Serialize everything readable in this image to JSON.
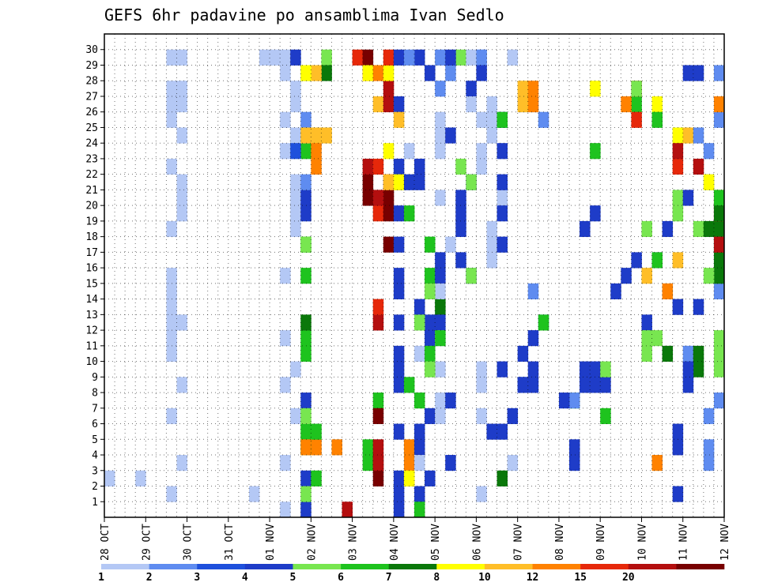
{
  "chart_data": {
    "type": "heatmap",
    "title": "GEFS 6hr padavine po ansamblima Ivan Sedlo",
    "xlabel": "",
    "ylabel": "",
    "x_ticks": [
      "28 OCT",
      "29 OCT",
      "30 OCT",
      "31 OCT",
      "01 NOV",
      "02 NOV",
      "03 NOV",
      "04 NOV",
      "05 NOV",
      "06 NOV",
      "07 NOV",
      "08 NOV",
      "09 NOV",
      "10 NOV",
      "11 NOV",
      "12 NOV"
    ],
    "y_ticks": [
      "1",
      "2",
      "3",
      "4",
      "5",
      "6",
      "7",
      "8",
      "9",
      "10",
      "11",
      "12",
      "13",
      "14",
      "15",
      "16",
      "17",
      "18",
      "19",
      "20",
      "21",
      "22",
      "23",
      "24",
      "25",
      "26",
      "27",
      "28",
      "29",
      "30"
    ],
    "time_steps": 60,
    "step_hours": 6,
    "members": 31,
    "grid": true,
    "colorbar": {
      "levels": [
        "1",
        "2",
        "3",
        "4",
        "5",
        "6",
        "7",
        "8",
        "10",
        "12",
        "15",
        "20"
      ],
      "colors": [
        "#b4c8f5",
        "#5f8cf0",
        "#1e50dc",
        "#1e3cc8",
        "#78e650",
        "#1ec31e",
        "#0a780a",
        "#ffff00",
        "#ffbe28",
        "#ff8200",
        "#e6280a",
        "#b40f0f",
        "#780000"
      ]
    },
    "cells": [
      [
        0,
        2,
        0
      ],
      [
        0,
        2,
        3
      ],
      [
        0,
        1,
        6
      ],
      [
        0,
        6,
        6
      ],
      [
        0,
        10,
        6
      ],
      [
        0,
        11,
        6
      ],
      [
        0,
        12,
        6
      ],
      [
        0,
        13,
        6
      ],
      [
        0,
        14,
        6
      ],
      [
        0,
        15,
        6
      ],
      [
        0,
        18,
        6
      ],
      [
        0,
        22,
        6
      ],
      [
        0,
        25,
        6
      ],
      [
        0,
        26,
        6
      ],
      [
        0,
        27,
        6
      ],
      [
        0,
        29,
        6
      ],
      [
        0,
        3,
        7
      ],
      [
        0,
        8,
        7
      ],
      [
        0,
        12,
        7
      ],
      [
        0,
        19,
        7
      ],
      [
        0,
        20,
        7
      ],
      [
        0,
        21,
        7
      ],
      [
        0,
        24,
        7
      ],
      [
        0,
        26,
        7
      ],
      [
        0,
        27,
        7
      ],
      [
        0,
        29,
        7
      ],
      [
        0,
        29,
        15
      ],
      [
        0,
        29,
        16
      ],
      [
        0,
        1,
        14
      ],
      [
        0,
        0,
        17
      ],
      [
        0,
        3,
        17
      ],
      [
        0,
        8,
        17
      ],
      [
        0,
        11,
        17
      ],
      [
        0,
        15,
        17
      ],
      [
        0,
        23,
        17
      ],
      [
        0,
        25,
        17
      ],
      [
        0,
        28,
        17
      ],
      [
        0,
        29,
        17
      ],
      [
        0,
        6,
        18
      ],
      [
        0,
        9,
        18
      ],
      [
        0,
        18,
        18
      ],
      [
        0,
        19,
        18
      ],
      [
        0,
        20,
        18
      ],
      [
        0,
        21,
        18
      ],
      [
        0,
        24,
        18
      ],
      [
        0,
        26,
        18
      ],
      [
        0,
        27,
        18
      ],
      [
        3,
        29,
        18
      ],
      [
        3,
        20,
        19
      ],
      [
        3,
        0,
        19
      ],
      [
        5,
        23,
        19
      ],
      [
        5,
        17,
        19
      ],
      [
        5,
        5,
        19
      ],
      [
        5,
        10,
        19
      ],
      [
        3,
        19,
        19
      ],
      [
        1,
        24,
        19
      ],
      [
        1,
        25,
        19
      ],
      [
        1,
        21,
        19
      ],
      [
        1,
        28,
        19
      ],
      [
        2,
        23,
        18
      ],
      [
        4,
        29,
        21
      ],
      [
        6,
        28,
        21
      ],
      [
        8,
        24,
        20
      ],
      [
        8,
        24,
        19
      ],
      [
        9,
        23,
        20
      ],
      [
        9,
        4,
        20
      ],
      [
        3,
        2,
        19
      ],
      [
        3,
        7,
        19
      ],
      [
        4,
        1,
        19
      ],
      [
        4,
        6,
        19
      ],
      [
        4,
        17,
        19
      ],
      [
        5,
        2,
        20
      ],
      [
        5,
        5,
        20
      ],
      [
        5,
        4,
        19
      ],
      [
        9,
        4,
        19
      ],
      [
        5,
        11,
        19
      ],
      [
        6,
        12,
        19
      ],
      [
        5,
        15,
        19
      ],
      [
        8,
        24,
        21
      ],
      [
        9,
        22,
        20
      ],
      [
        8,
        28,
        20
      ],
      [
        7,
        28,
        19
      ],
      [
        9,
        4,
        22
      ],
      [
        11,
        0,
        23
      ],
      [
        10,
        29,
        24
      ],
      [
        12,
        29,
        25
      ],
      [
        12,
        20,
        25
      ],
      [
        12,
        21,
        25
      ],
      [
        11,
        22,
        25
      ],
      [
        10,
        28,
        25
      ],
      [
        7,
        28,
        25
      ],
      [
        9,
        28,
        26
      ],
      [
        8,
        26,
        26
      ],
      [
        10,
        19,
        26
      ],
      [
        10,
        22,
        26
      ],
      [
        12,
        19,
        27
      ],
      [
        11,
        26,
        27
      ],
      [
        12,
        17,
        27
      ],
      [
        12,
        20,
        27
      ],
      [
        11,
        27,
        27
      ],
      [
        7,
        28,
        27
      ],
      [
        10,
        29,
        27
      ],
      [
        3,
        29,
        28
      ],
      [
        3,
        22,
        28
      ],
      [
        3,
        26,
        28
      ],
      [
        3,
        21,
        28
      ],
      [
        3,
        19,
        28
      ],
      [
        3,
        17,
        28
      ],
      [
        3,
        15,
        28
      ],
      [
        3,
        14,
        28
      ],
      [
        3,
        8,
        28
      ],
      [
        3,
        12,
        28
      ],
      [
        3,
        5,
        28
      ],
      [
        3,
        2,
        28
      ],
      [
        3,
        1,
        28
      ],
      [
        3,
        0,
        28
      ],
      [
        3,
        10,
        28
      ],
      [
        3,
        9,
        28
      ],
      [
        5,
        3,
        25
      ],
      [
        5,
        4,
        25
      ],
      [
        5,
        7,
        26
      ],
      [
        7,
        23,
        27
      ],
      [
        8,
        25,
        28
      ],
      [
        9,
        2,
        29
      ],
      [
        9,
        3,
        29
      ],
      [
        9,
        4,
        29
      ],
      [
        3,
        29,
        30
      ],
      [
        3,
        28,
        31
      ],
      [
        3,
        22,
        30
      ],
      [
        3,
        21,
        30
      ],
      [
        3,
        13,
        30
      ],
      [
        3,
        12,
        31
      ],
      [
        3,
        11,
        31
      ],
      [
        3,
        6,
        31
      ],
      [
        3,
        5,
        30
      ],
      [
        3,
        4,
        30
      ],
      [
        3,
        2,
        31
      ],
      [
        3,
        1,
        30
      ],
      [
        1,
        27,
        32
      ],
      [
        1,
        29,
        32
      ],
      [
        4,
        12,
        30
      ],
      [
        5,
        15,
        31
      ],
      [
        5,
        17,
        31
      ],
      [
        6,
        13,
        32
      ],
      [
        3,
        16,
        32
      ],
      [
        3,
        15,
        32
      ],
      [
        3,
        12,
        32
      ],
      [
        0,
        3,
        30
      ],
      [
        0,
        10,
        30
      ],
      [
        0,
        23,
        29
      ],
      [
        0,
        20,
        32
      ],
      [
        0,
        24,
        32
      ],
      [
        0,
        7,
        32
      ],
      [
        0,
        6,
        32
      ],
      [
        0,
        9,
        32
      ],
      [
        0,
        11,
        32
      ],
      [
        0,
        14,
        32
      ],
      [
        0,
        23,
        32
      ],
      [
        0,
        25,
        32
      ],
      [
        0,
        17,
        33
      ],
      [
        3,
        3,
        33
      ],
      [
        3,
        18,
        34
      ],
      [
        3,
        19,
        34
      ],
      [
        3,
        16,
        34
      ],
      [
        3,
        15,
        35
      ],
      [
        3,
        24,
        33
      ],
      [
        4,
        15,
        35
      ],
      [
        4,
        22,
        34
      ],
      [
        4,
        29,
        34
      ],
      [
        3,
        21,
        35
      ],
      [
        3,
        27,
        35
      ],
      [
        0,
        26,
        35
      ],
      [
        0,
        29,
        35
      ],
      [
        0,
        25,
        36
      ],
      [
        0,
        1,
        36
      ],
      [
        0,
        6,
        36
      ],
      [
        0,
        8,
        36
      ],
      [
        0,
        9,
        36
      ],
      [
        0,
        22,
        36
      ],
      [
        0,
        23,
        36
      ],
      [
        0,
        29,
        36
      ],
      [
        0,
        16,
        37
      ],
      [
        0,
        17,
        37
      ],
      [
        0,
        18,
        37
      ],
      [
        0,
        24,
        37
      ],
      [
        0,
        25,
        37
      ],
      [
        0,
        26,
        37
      ],
      [
        0,
        20,
        38
      ],
      [
        0,
        21,
        38
      ],
      [
        0,
        3,
        39
      ],
      [
        0,
        29,
        39
      ],
      [
        3,
        5,
        37
      ],
      [
        3,
        17,
        38
      ],
      [
        3,
        21,
        38
      ],
      [
        3,
        23,
        38
      ],
      [
        3,
        19,
        38
      ],
      [
        3,
        9,
        38
      ],
      [
        3,
        25,
        38
      ],
      [
        5,
        25,
        38
      ],
      [
        3,
        5,
        38
      ],
      [
        6,
        2,
        38
      ],
      [
        3,
        6,
        39
      ],
      [
        2,
        8,
        40
      ],
      [
        3,
        8,
        40
      ],
      [
        3,
        10,
        40
      ],
      [
        3,
        11,
        41
      ],
      [
        3,
        8,
        41
      ],
      [
        3,
        9,
        41
      ],
      [
        1,
        26,
        40
      ],
      [
        1,
        14,
        41
      ],
      [
        1,
        26,
        41
      ],
      [
        1,
        25,
        42
      ],
      [
        1,
        12,
        42
      ],
      [
        8,
        27,
        40
      ],
      [
        8,
        26,
        40
      ],
      [
        9,
        27,
        41
      ],
      [
        9,
        26,
        41
      ],
      [
        5,
        12,
        42
      ],
      [
        5,
        7,
        45
      ],
      [
        1,
        7,
        45
      ],
      [
        3,
        9,
        46
      ],
      [
        3,
        9,
        47
      ],
      [
        3,
        8,
        46
      ],
      [
        3,
        8,
        47
      ],
      [
        3,
        8,
        48
      ],
      [
        3,
        3,
        45
      ],
      [
        3,
        4,
        45
      ],
      [
        3,
        14,
        49
      ],
      [
        3,
        7,
        44
      ],
      [
        3,
        18,
        46
      ],
      [
        3,
        19,
        47
      ],
      [
        3,
        15,
        50
      ],
      [
        3,
        16,
        51
      ],
      [
        3,
        12,
        52
      ],
      [
        3,
        16,
        53
      ],
      [
        4,
        9,
        48
      ],
      [
        5,
        6,
        48
      ],
      [
        5,
        23,
        47
      ],
      [
        5,
        26,
        51
      ],
      [
        7,
        27,
        47
      ],
      [
        9,
        26,
        50
      ],
      [
        10,
        27,
        51
      ],
      [
        10,
        25,
        51
      ],
      [
        7,
        26,
        53
      ],
      [
        4,
        27,
        51
      ],
      [
        5,
        25,
        53
      ],
      [
        7,
        24,
        55
      ],
      [
        5,
        16,
        53
      ],
      [
        8,
        24,
        56
      ],
      [
        8,
        15,
        52
      ],
      [
        9,
        14,
        54
      ],
      [
        4,
        11,
        53
      ],
      [
        4,
        10,
        52
      ],
      [
        4,
        11,
        52
      ],
      [
        6,
        10,
        54
      ],
      [
        4,
        18,
        52
      ],
      [
        1,
        10,
        56
      ],
      [
        4,
        19,
        55
      ],
      [
        4,
        20,
        55
      ],
      [
        4,
        18,
        57
      ],
      [
        6,
        18,
        58
      ],
      [
        6,
        9,
        57
      ],
      [
        6,
        10,
        57
      ],
      [
        10,
        22,
        55
      ],
      [
        11,
        23,
        55
      ],
      [
        11,
        22,
        57
      ],
      [
        9,
        3,
        53
      ],
      [
        8,
        16,
        55
      ],
      [
        3,
        28,
        57
      ],
      [
        3,
        18,
        54
      ],
      [
        3,
        13,
        55
      ],
      [
        3,
        13,
        57
      ],
      [
        3,
        5,
        55
      ],
      [
        3,
        4,
        55
      ],
      [
        3,
        1,
        55
      ],
      [
        3,
        8,
        56
      ],
      [
        3,
        9,
        56
      ],
      [
        3,
        20,
        56
      ],
      [
        3,
        28,
        56
      ],
      [
        1,
        24,
        57
      ],
      [
        1,
        23,
        58
      ],
      [
        1,
        21,
        58
      ],
      [
        1,
        6,
        58
      ],
      [
        1,
        4,
        58
      ],
      [
        1,
        3,
        58
      ],
      [
        1,
        7,
        59
      ],
      [
        1,
        14,
        59
      ],
      [
        1,
        25,
        59
      ],
      [
        1,
        28,
        59
      ],
      [
        6,
        15,
        59
      ],
      [
        6,
        16,
        59
      ],
      [
        6,
        17,
        59
      ],
      [
        6,
        18,
        59
      ],
      [
        7,
        21,
        58
      ],
      [
        9,
        26,
        59
      ],
      [
        9,
        20,
        59
      ],
      [
        11,
        17,
        59
      ],
      [
        10,
        19,
        59
      ],
      [
        5,
        20,
        59
      ],
      [
        6,
        19,
        59
      ],
      [
        4,
        11,
        59
      ],
      [
        4,
        10,
        59
      ],
      [
        4,
        9,
        59
      ],
      [
        4,
        15,
        58
      ],
      [
        12,
        2,
        26
      ],
      [
        12,
        3,
        26
      ],
      [
        12,
        6,
        26
      ],
      [
        11,
        4,
        26
      ],
      [
        11,
        3,
        26
      ],
      [
        11,
        12,
        26
      ],
      [
        10,
        13,
        26
      ],
      [
        11,
        21,
        27
      ],
      [
        11,
        20,
        26
      ],
      [
        8,
        21,
        27
      ],
      [
        7,
        21,
        28
      ],
      [
        5,
        19,
        29
      ],
      [
        5,
        8,
        29
      ],
      [
        5,
        7,
        30
      ],
      [
        5,
        11,
        32
      ],
      [
        5,
        10,
        31
      ],
      [
        4,
        9,
        31
      ],
      [
        4,
        14,
        31
      ],
      [
        3,
        7,
        33
      ],
      [
        1,
        28,
        33
      ],
      [
        3,
        20,
        34
      ],
      [
        4,
        21,
        35
      ],
      [
        7,
        2,
        29
      ],
      [
        1,
        29,
        29
      ],
      [
        3,
        21,
        29
      ],
      [
        5,
        0,
        30
      ],
      [
        3,
        29,
        33
      ],
      [
        1,
        29,
        36
      ],
      [
        3,
        28,
        36
      ]
    ]
  }
}
